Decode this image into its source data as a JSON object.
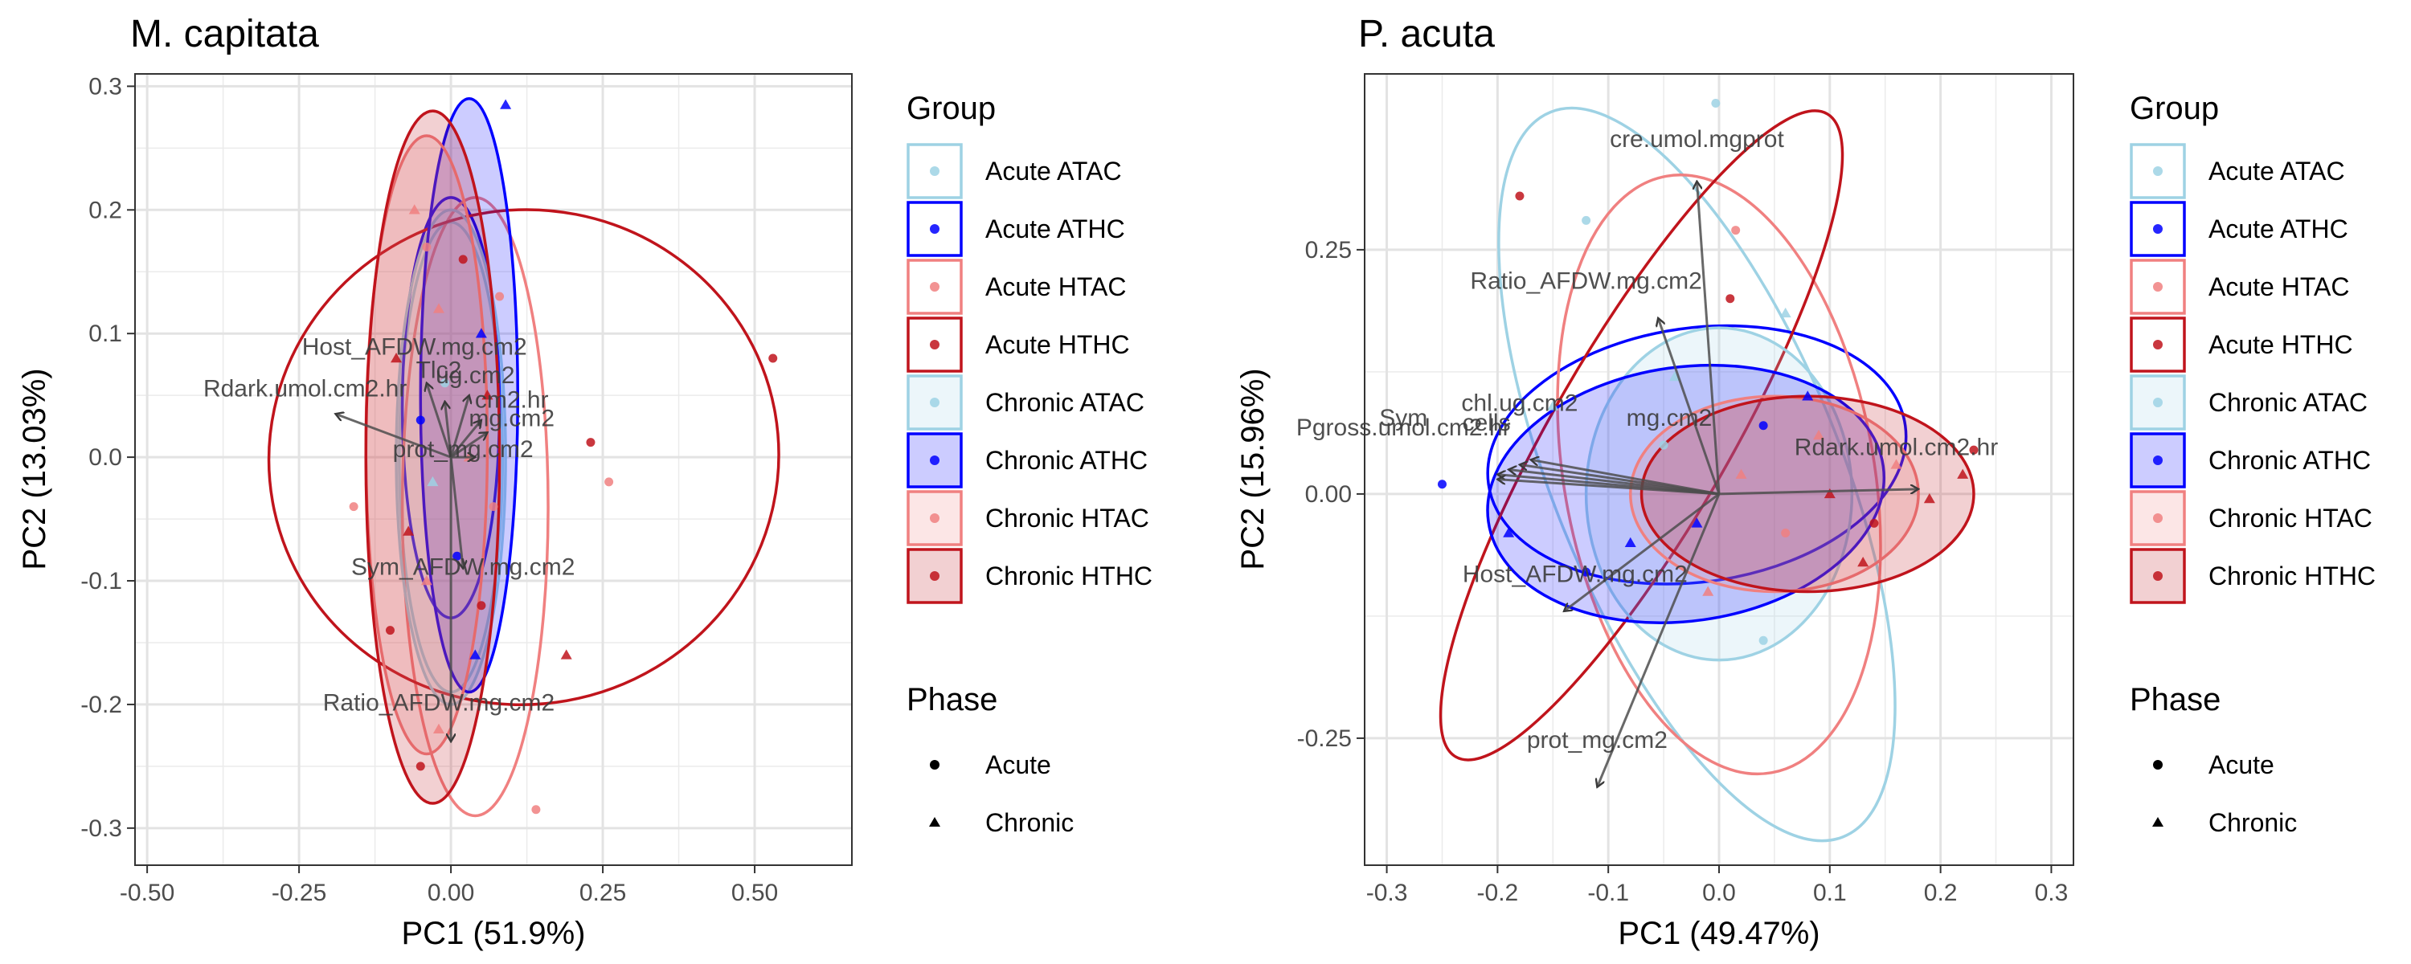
{
  "colors": {
    "acute_atac": "#9ED2E4",
    "acute_athc": "#0000FF",
    "acute_htac": "#F08080",
    "acute_hthc": "#C0141C",
    "arrow": "#4D4D4D",
    "grid": "#EBEBEB",
    "panel_border": "#333333",
    "label_text": "#3C3C3C"
  },
  "legend": {
    "group_title": "Group",
    "groups": [
      {
        "label": "Acute ATAC",
        "color": "#9ED2E4",
        "fill": false
      },
      {
        "label": "Acute ATHC",
        "color": "#0000FF",
        "fill": false
      },
      {
        "label": "Acute HTAC",
        "color": "#F08080",
        "fill": false
      },
      {
        "label": "Acute HTHC",
        "color": "#C0141C",
        "fill": false
      },
      {
        "label": "Chronic ATAC",
        "color": "#9ED2E4",
        "fill": true
      },
      {
        "label": "Chronic ATHC",
        "color": "#0000FF",
        "fill": true
      },
      {
        "label": "Chronic HTAC",
        "color": "#F08080",
        "fill": true
      },
      {
        "label": "Chronic HTHC",
        "color": "#C0141C",
        "fill": true
      }
    ],
    "phase_title": "Phase",
    "phases": [
      {
        "label": "Acute",
        "shape": "circle"
      },
      {
        "label": "Chronic",
        "shape": "triangle"
      }
    ]
  },
  "chart_data": [
    {
      "type": "scatter",
      "title": "M. capitata",
      "xlabel": "PC1 (51.9%)",
      "ylabel": "PC2 (13.03%)",
      "xlim": [
        -0.52,
        0.66
      ],
      "ylim": [
        -0.33,
        0.31
      ],
      "xticks": [
        {
          "v": -0.5,
          "label": "-0.50"
        },
        {
          "v": -0.25,
          "label": "-0.25"
        },
        {
          "v": 0,
          "label": "0.00"
        },
        {
          "v": 0.25,
          "label": "0.25"
        },
        {
          "v": 0.5,
          "label": "0.50"
        }
      ],
      "yticks": [
        {
          "v": -0.3,
          "label": "-0.3"
        },
        {
          "v": -0.2,
          "label": "-0.2"
        },
        {
          "v": -0.1,
          "label": "-0.1"
        },
        {
          "v": 0,
          "label": "0.0"
        },
        {
          "v": 0.1,
          "label": "0.1"
        },
        {
          "v": 0.2,
          "label": "0.2"
        },
        {
          "v": 0.3,
          "label": "0.3"
        }
      ],
      "ellipses": [
        {
          "group": "Acute ATAC",
          "cx": 0.0,
          "cy": 0.0,
          "rx": 0.085,
          "ry": 0.19
        },
        {
          "group": "Acute ATHC",
          "cx": 0.0,
          "cy": 0.04,
          "rx": 0.08,
          "ry": 0.17
        },
        {
          "group": "Acute HTAC",
          "cx": 0.04,
          "cy": -0.04,
          "rx": 0.12,
          "ry": 0.25
        },
        {
          "group": "Acute HTHC",
          "cx": 0.12,
          "cy": 0.0,
          "rx": 0.42,
          "ry": 0.2,
          "angle": -10
        },
        {
          "group": "Chronic ATAC",
          "cx": 0.0,
          "cy": 0.0,
          "rx": 0.09,
          "ry": 0.2
        },
        {
          "group": "Chronic ATHC",
          "cx": 0.03,
          "cy": 0.05,
          "rx": 0.08,
          "ry": 0.24
        },
        {
          "group": "Chronic HTAC",
          "cx": -0.04,
          "cy": 0.01,
          "rx": 0.1,
          "ry": 0.25
        },
        {
          "group": "Chronic HTHC",
          "cx": -0.03,
          "cy": 0.0,
          "rx": 0.11,
          "ry": 0.28
        }
      ],
      "points": [
        {
          "x": 0.09,
          "y": 0.285,
          "group": "Chronic ATHC",
          "phase": "Chronic"
        },
        {
          "x": 0.53,
          "y": 0.08,
          "group": "Acute HTHC",
          "phase": "Acute"
        },
        {
          "x": 0.26,
          "y": -0.02,
          "group": "Acute HTAC",
          "phase": "Acute"
        },
        {
          "x": 0.23,
          "y": 0.012,
          "group": "Acute HTHC",
          "phase": "Acute"
        },
        {
          "x": 0.14,
          "y": -0.285,
          "group": "Acute HTAC",
          "phase": "Acute"
        },
        {
          "x": -0.16,
          "y": -0.04,
          "group": "Acute HTAC",
          "phase": "Acute"
        },
        {
          "x": -0.05,
          "y": -0.25,
          "group": "Acute HTHC",
          "phase": "Acute"
        },
        {
          "x": 0.19,
          "y": -0.16,
          "group": "Chronic HTHC",
          "phase": "Chronic"
        },
        {
          "x": -0.02,
          "y": -0.22,
          "group": "Chronic HTAC",
          "phase": "Chronic"
        },
        {
          "x": -0.04,
          "y": 0.17,
          "group": "Acute HTAC",
          "phase": "Acute"
        },
        {
          "x": 0.02,
          "y": 0.16,
          "group": "Acute HTHC",
          "phase": "Acute"
        },
        {
          "x": -0.02,
          "y": 0.12,
          "group": "Chronic HTAC",
          "phase": "Chronic"
        },
        {
          "x": 0.05,
          "y": 0.1,
          "group": "Chronic ATHC",
          "phase": "Chronic"
        },
        {
          "x": -0.01,
          "y": 0.06,
          "group": "Acute ATAC",
          "phase": "Acute"
        },
        {
          "x": 0.06,
          "y": 0.05,
          "group": "Chronic HTHC",
          "phase": "Chronic"
        },
        {
          "x": -0.05,
          "y": 0.03,
          "group": "Acute ATHC",
          "phase": "Acute"
        },
        {
          "x": 0.03,
          "y": 0.0,
          "group": "Chronic HTAC",
          "phase": "Chronic"
        },
        {
          "x": -0.03,
          "y": -0.02,
          "group": "Chronic ATAC",
          "phase": "Chronic"
        },
        {
          "x": 0.07,
          "y": -0.04,
          "group": "Acute HTAC",
          "phase": "Acute"
        },
        {
          "x": -0.07,
          "y": -0.06,
          "group": "Chronic HTHC",
          "phase": "Chronic"
        },
        {
          "x": 0.01,
          "y": -0.08,
          "group": "Acute ATHC",
          "phase": "Acute"
        },
        {
          "x": -0.04,
          "y": -0.1,
          "group": "Chronic HTAC",
          "phase": "Chronic"
        },
        {
          "x": 0.05,
          "y": -0.12,
          "group": "Acute HTHC",
          "phase": "Acute"
        },
        {
          "x": -0.09,
          "y": 0.08,
          "group": "Chronic HTHC",
          "phase": "Chronic"
        },
        {
          "x": 0.08,
          "y": 0.13,
          "group": "Acute HTAC",
          "phase": "Acute"
        },
        {
          "x": -0.06,
          "y": 0.2,
          "group": "Chronic HTAC",
          "phase": "Chronic"
        },
        {
          "x": 0.04,
          "y": -0.16,
          "group": "Chronic ATHC",
          "phase": "Chronic"
        },
        {
          "x": -0.1,
          "y": -0.14,
          "group": "Acute HTHC",
          "phase": "Acute"
        }
      ],
      "arrows": [
        {
          "label": "Host_AFDW.mg.cm2",
          "x": -0.04,
          "y": 0.06,
          "lx": -0.06,
          "ly": 0.083
        },
        {
          "label": "Tlc2",
          "x": -0.01,
          "y": 0.045,
          "lx": -0.02,
          "ly": 0.064
        },
        {
          "label": "ug.cm2",
          "x": 0.03,
          "y": 0.05,
          "lx": 0.04,
          "ly": 0.06
        },
        {
          "label": "Rdark.umol.cm2.hr",
          "x": -0.19,
          "y": 0.035,
          "lx": -0.24,
          "ly": 0.049
        },
        {
          "label": "cm2.hr",
          "x": 0.05,
          "y": 0.03,
          "lx": 0.1,
          "ly": 0.04
        },
        {
          "label": "mg.cm2",
          "x": 0.06,
          "y": 0.02,
          "lx": 0.1,
          "ly": 0.025
        },
        {
          "label": "prot_mg.cm2",
          "x": 0.04,
          "y": 0.0,
          "lx": 0.02,
          "ly": 0.0
        },
        {
          "label": "Sym_AFDW.mg.cm2",
          "x": 0.02,
          "y": -0.09,
          "lx": 0.02,
          "ly": -0.095
        },
        {
          "label": "Ratio_AFDW.mg.cm2",
          "x": 0.0,
          "y": -0.23,
          "lx": -0.02,
          "ly": -0.205
        }
      ]
    },
    {
      "type": "scatter",
      "title": "P. acuta",
      "xlabel": "PC1 (49.47%)",
      "ylabel": "PC2 (15.96%)",
      "xlim": [
        -0.32,
        0.32
      ],
      "ylim": [
        -0.38,
        0.43
      ],
      "xticks": [
        {
          "v": -0.3,
          "label": "-0.3"
        },
        {
          "v": -0.2,
          "label": "-0.2"
        },
        {
          "v": -0.1,
          "label": "-0.1"
        },
        {
          "v": 0,
          "label": "0.0"
        },
        {
          "v": 0.1,
          "label": "0.1"
        },
        {
          "v": 0.2,
          "label": "0.2"
        },
        {
          "v": 0.3,
          "label": "0.3"
        }
      ],
      "yticks": [
        {
          "v": -0.25,
          "label": "-0.25"
        },
        {
          "v": 0,
          "label": "0.00"
        },
        {
          "v": 0.25,
          "label": "0.25"
        }
      ],
      "ellipses": [
        {
          "group": "Acute ATAC",
          "cx": -0.02,
          "cy": 0.02,
          "rx": 0.13,
          "ry": 0.4,
          "angle": -22
        },
        {
          "group": "Acute ATHC",
          "cx": -0.02,
          "cy": 0.04,
          "rx": 0.19,
          "ry": 0.13,
          "angle": -8
        },
        {
          "group": "Acute HTAC",
          "cx": 0.0,
          "cy": 0.02,
          "rx": 0.14,
          "ry": 0.31,
          "angle": -10
        },
        {
          "group": "Acute HTHC",
          "cx": -0.07,
          "cy": 0.06,
          "rx": 0.08,
          "ry": 0.38,
          "angle": 30
        },
        {
          "group": "Chronic ATAC",
          "cx": 0.0,
          "cy": 0.0,
          "rx": 0.12,
          "ry": 0.17
        },
        {
          "group": "Chronic ATHC",
          "cx": -0.03,
          "cy": 0.0,
          "rx": 0.18,
          "ry": 0.13,
          "angle": -8
        },
        {
          "group": "Chronic HTAC",
          "cx": 0.05,
          "cy": 0.0,
          "rx": 0.13,
          "ry": 0.1
        },
        {
          "group": "Chronic HTHC",
          "cx": 0.08,
          "cy": 0.0,
          "rx": 0.15,
          "ry": 0.1
        }
      ],
      "points": [
        {
          "x": -0.003,
          "y": 0.4,
          "group": "Acute ATAC",
          "phase": "Acute"
        },
        {
          "x": 0.015,
          "y": 0.27,
          "group": "Acute HTAC",
          "phase": "Acute"
        },
        {
          "x": -0.12,
          "y": 0.28,
          "group": "Acute ATAC",
          "phase": "Acute"
        },
        {
          "x": -0.18,
          "y": 0.305,
          "group": "Acute HTHC",
          "phase": "Acute"
        },
        {
          "x": 0.01,
          "y": 0.2,
          "group": "Acute HTHC",
          "phase": "Acute"
        },
        {
          "x": 0.06,
          "y": 0.185,
          "group": "Chronic ATAC",
          "phase": "Chronic"
        },
        {
          "x": -0.25,
          "y": 0.01,
          "group": "Acute ATHC",
          "phase": "Acute"
        },
        {
          "x": 0.23,
          "y": 0.045,
          "group": "Acute HTHC",
          "phase": "Acute"
        },
        {
          "x": 0.22,
          "y": 0.02,
          "group": "Chronic HTHC",
          "phase": "Chronic"
        },
        {
          "x": 0.19,
          "y": -0.005,
          "group": "Chronic HTHC",
          "phase": "Chronic"
        },
        {
          "x": 0.16,
          "y": 0.03,
          "group": "Chronic HTAC",
          "phase": "Chronic"
        },
        {
          "x": 0.13,
          "y": -0.07,
          "group": "Chronic HTHC",
          "phase": "Chronic"
        },
        {
          "x": 0.08,
          "y": 0.1,
          "group": "Chronic ATHC",
          "phase": "Chronic"
        },
        {
          "x": 0.04,
          "y": 0.07,
          "group": "Acute ATHC",
          "phase": "Acute"
        },
        {
          "x": 0.02,
          "y": 0.02,
          "group": "Chronic HTAC",
          "phase": "Chronic"
        },
        {
          "x": -0.02,
          "y": -0.03,
          "group": "Chronic ATHC",
          "phase": "Chronic"
        },
        {
          "x": -0.05,
          "y": 0.05,
          "group": "Acute ATAC",
          "phase": "Acute"
        },
        {
          "x": -0.08,
          "y": -0.05,
          "group": "Chronic ATHC",
          "phase": "Chronic"
        },
        {
          "x": -0.12,
          "y": -0.08,
          "group": "Acute ATHC",
          "phase": "Acute"
        },
        {
          "x": -0.15,
          "y": 0.09,
          "group": "Chronic ATAC",
          "phase": "Chronic"
        },
        {
          "x": 0.06,
          "y": -0.04,
          "group": "Acute HTAC",
          "phase": "Acute"
        },
        {
          "x": 0.1,
          "y": 0.0,
          "group": "Chronic HTHC",
          "phase": "Chronic"
        },
        {
          "x": -0.01,
          "y": -0.1,
          "group": "Chronic HTAC",
          "phase": "Chronic"
        },
        {
          "x": 0.04,
          "y": -0.15,
          "group": "Acute ATAC",
          "phase": "Acute"
        },
        {
          "x": -0.19,
          "y": -0.04,
          "group": "Chronic ATHC",
          "phase": "Chronic"
        },
        {
          "x": 0.09,
          "y": 0.06,
          "group": "Chronic HTAC",
          "phase": "Chronic"
        },
        {
          "x": -0.04,
          "y": 0.12,
          "group": "Chronic ATAC",
          "phase": "Chronic"
        },
        {
          "x": 0.14,
          "y": -0.03,
          "group": "Acute HTHC",
          "phase": "Acute"
        }
      ],
      "arrows": [
        {
          "label": "cre.umol.mgprot",
          "x": -0.02,
          "y": 0.32,
          "lx": -0.02,
          "ly": 0.355
        },
        {
          "label": "Ratio_AFDW.mg.cm2",
          "x": -0.055,
          "y": 0.18,
          "lx": -0.12,
          "ly": 0.21
        },
        {
          "label": "chl.ug.cm2",
          "x": -0.2,
          "y": 0.02,
          "lx": -0.18,
          "ly": 0.085
        },
        {
          "label": "Pgross.umol.cm2.hr",
          "x": -0.2,
          "y": 0.015,
          "lx": -0.285,
          "ly": 0.06
        },
        {
          "label": "Sym",
          "x": -0.19,
          "y": 0.025,
          "lx": -0.285,
          "ly": 0.07
        },
        {
          "label": "cells",
          "x": -0.18,
          "y": 0.03,
          "lx": -0.21,
          "ly": 0.065
        },
        {
          "label": "mg.cm2",
          "x": -0.17,
          "y": 0.035,
          "lx": -0.045,
          "ly": 0.07
        },
        {
          "label": "Rdark.umol.cm2.hr",
          "x": 0.18,
          "y": 0.005,
          "lx": 0.16,
          "ly": 0.04
        },
        {
          "label": "Host_AFDW.mg.cm2",
          "x": -0.14,
          "y": -0.12,
          "lx": -0.13,
          "ly": -0.09
        },
        {
          "label": "prot_mg.cm2",
          "x": -0.11,
          "y": -0.3,
          "lx": -0.11,
          "ly": -0.26
        }
      ]
    }
  ]
}
